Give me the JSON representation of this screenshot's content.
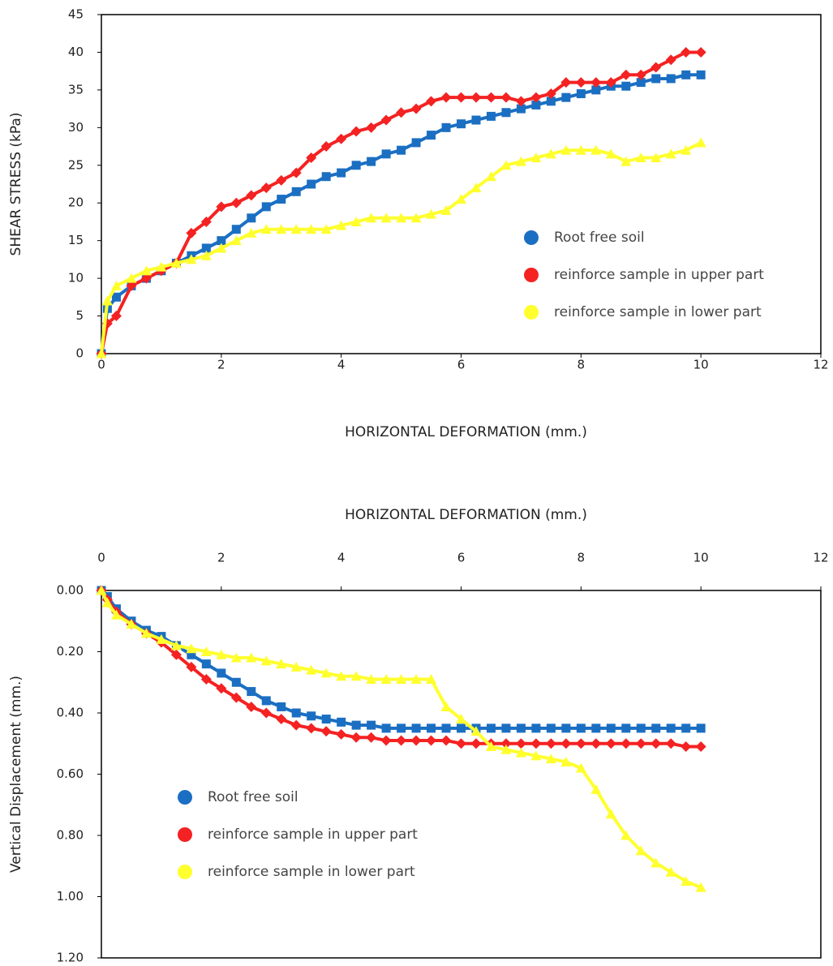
{
  "chart_data": [
    {
      "type": "line",
      "x_label": "HORIZONTAL DEFORMATION (mm.)",
      "y_label": "SHEAR STRESS (kPa)",
      "x": [
        0,
        0.1,
        0.25,
        0.5,
        0.75,
        1,
        1.25,
        1.5,
        1.75,
        2,
        2.25,
        2.5,
        2.75,
        3,
        3.25,
        3.5,
        3.75,
        4,
        4.25,
        4.5,
        4.75,
        5,
        5.25,
        5.5,
        5.75,
        6,
        6.25,
        6.5,
        6.75,
        7,
        7.25,
        7.5,
        7.75,
        8,
        8.25,
        8.5,
        8.75,
        9,
        9.25,
        9.5,
        9.75,
        10
      ],
      "series": [
        {
          "name": "Root free soil",
          "color": "#1b6fc2",
          "marker": "square",
          "values": [
            0,
            6,
            7.5,
            9,
            10,
            11,
            12,
            13,
            14,
            15,
            16.5,
            18,
            19.5,
            20.5,
            21.5,
            22.5,
            23.5,
            24,
            25,
            25.5,
            26.5,
            27,
            28,
            29,
            30,
            30.5,
            31,
            31.5,
            32,
            32.5,
            33,
            33.5,
            34,
            34.5,
            35,
            35.5,
            35.5,
            36,
            36.5,
            36.5,
            37,
            37
          ]
        },
        {
          "name": "reinforce sample in upper part",
          "color": "#f42222",
          "marker": "diamond",
          "values": [
            0,
            4,
            5,
            9,
            10,
            11,
            12,
            16,
            17.5,
            19.5,
            20,
            21,
            22,
            23,
            24,
            26,
            27.5,
            28.5,
            29.5,
            30,
            31,
            32,
            32.5,
            33.5,
            34,
            34,
            34,
            34,
            34,
            33.5,
            34,
            34.5,
            36,
            36,
            36,
            36,
            37,
            37,
            38,
            39,
            40,
            40
          ]
        },
        {
          "name": "reinforce sample in lower part",
          "color": "#ffff2e",
          "marker": "triangle",
          "values": [
            0,
            7,
            9,
            10,
            11,
            11.5,
            12,
            12.5,
            13,
            14,
            15,
            16,
            16.5,
            16.5,
            16.5,
            16.5,
            16.5,
            17,
            17.5,
            18,
            18,
            18,
            18,
            18.5,
            19,
            20.5,
            22,
            23.5,
            25,
            25.5,
            26,
            26.5,
            27,
            27,
            27,
            26.5,
            25.5,
            26,
            26,
            26.5,
            27,
            28
          ]
        }
      ],
      "xlim": [
        0,
        12
      ],
      "xticks": [
        0,
        2,
        4,
        6,
        8,
        10,
        12
      ],
      "ylim": [
        0,
        45
      ],
      "yticks": [
        0,
        5,
        10,
        15,
        20,
        25,
        30,
        35,
        40,
        45
      ],
      "x_axis_position": "bottom",
      "legend": "right"
    },
    {
      "type": "line",
      "x_label": "HORIZONTAL DEFORMATION (mm.)",
      "y_label": "Vertical Displacement (mm.)",
      "x": [
        0,
        0.1,
        0.25,
        0.5,
        0.75,
        1,
        1.25,
        1.5,
        1.75,
        2,
        2.25,
        2.5,
        2.75,
        3,
        3.25,
        3.5,
        3.75,
        4,
        4.25,
        4.5,
        4.75,
        5,
        5.25,
        5.5,
        5.75,
        6,
        6.25,
        6.5,
        6.75,
        7,
        7.25,
        7.5,
        7.75,
        8,
        8.25,
        8.5,
        8.75,
        9,
        9.25,
        9.5,
        9.75,
        10
      ],
      "series": [
        {
          "name": "Root free soil",
          "color": "#1b6fc2",
          "marker": "square",
          "values": [
            0,
            0.02,
            0.06,
            0.1,
            0.13,
            0.15,
            0.18,
            0.21,
            0.24,
            0.27,
            0.3,
            0.33,
            0.36,
            0.38,
            0.4,
            0.41,
            0.42,
            0.43,
            0.44,
            0.44,
            0.45,
            0.45,
            0.45,
            0.45,
            0.45,
            0.45,
            0.45,
            0.45,
            0.45,
            0.45,
            0.45,
            0.45,
            0.45,
            0.45,
            0.45,
            0.45,
            0.45,
            0.45,
            0.45,
            0.45,
            0.45,
            0.45
          ]
        },
        {
          "name": "reinforce sample in upper part",
          "color": "#f42222",
          "marker": "diamond",
          "values": [
            0,
            0.03,
            0.07,
            0.11,
            0.14,
            0.17,
            0.21,
            0.25,
            0.29,
            0.32,
            0.35,
            0.38,
            0.4,
            0.42,
            0.44,
            0.45,
            0.46,
            0.47,
            0.48,
            0.48,
            0.49,
            0.49,
            0.49,
            0.49,
            0.49,
            0.5,
            0.5,
            0.5,
            0.5,
            0.5,
            0.5,
            0.5,
            0.5,
            0.5,
            0.5,
            0.5,
            0.5,
            0.5,
            0.5,
            0.5,
            0.51,
            0.51
          ]
        },
        {
          "name": "reinforce sample in lower part",
          "color": "#ffff2e",
          "marker": "triangle",
          "values": [
            0,
            0.04,
            0.08,
            0.11,
            0.14,
            0.16,
            0.18,
            0.19,
            0.2,
            0.21,
            0.22,
            0.22,
            0.23,
            0.24,
            0.25,
            0.26,
            0.27,
            0.28,
            0.28,
            0.29,
            0.29,
            0.29,
            0.29,
            0.29,
            0.38,
            0.42,
            0.46,
            0.51,
            0.52,
            0.53,
            0.54,
            0.55,
            0.56,
            0.58,
            0.65,
            0.73,
            0.8,
            0.85,
            0.89,
            0.92,
            0.95,
            0.97
          ]
        }
      ],
      "xlim": [
        0,
        12
      ],
      "xticks": [
        0,
        2,
        4,
        6,
        8,
        10,
        12
      ],
      "ylim": [
        1.2,
        0
      ],
      "yticks": [
        {
          "value": 0,
          "label": "0.00"
        },
        {
          "value": 0.2,
          "label": "0.20"
        },
        {
          "value": 0.4,
          "label": "0.40"
        },
        {
          "value": 0.6,
          "label": "0.60"
        },
        {
          "value": 0.8,
          "label": "0.80"
        },
        {
          "value": 1.0,
          "label": "1.00"
        },
        {
          "value": 1.2,
          "label": "1.20"
        }
      ],
      "x_axis_position": "top",
      "legend": "lower left"
    }
  ]
}
